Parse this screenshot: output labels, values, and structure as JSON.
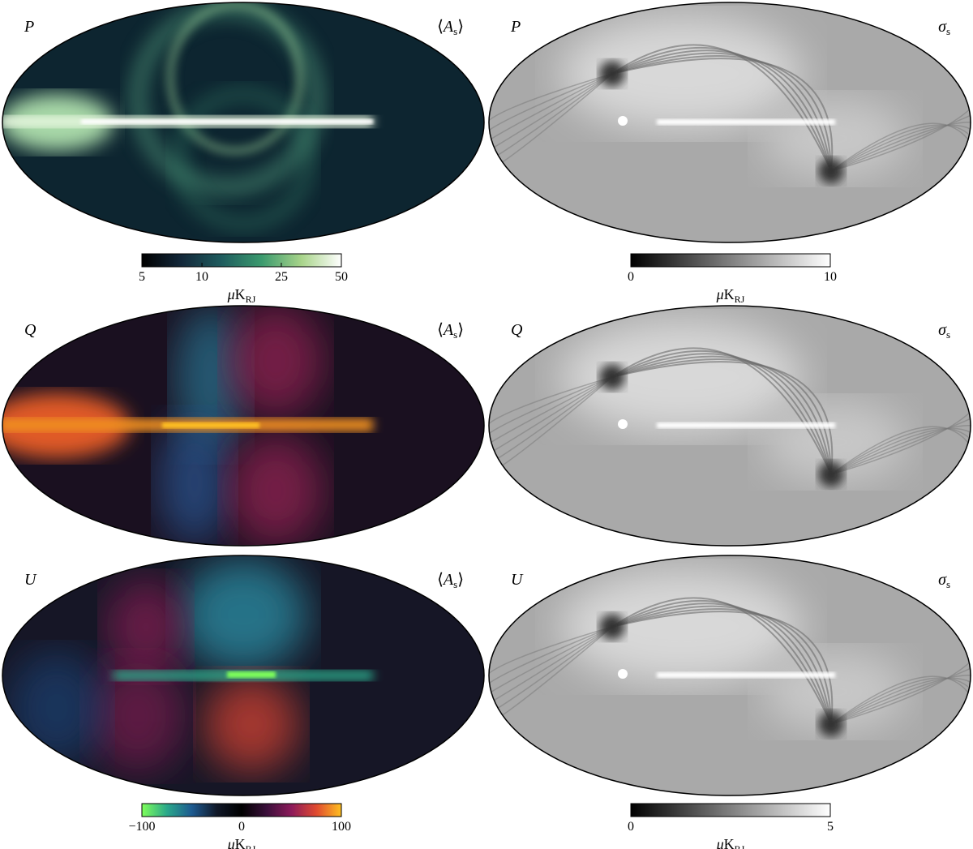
{
  "panels": [
    {
      "stokes": "P",
      "stat": {
        "open": "⟨",
        "symbol": "A",
        "sub": "s",
        "close": "⟩"
      }
    },
    {
      "stokes": "P",
      "stat": {
        "symbol": "σ",
        "sub": "s"
      }
    },
    {
      "stokes": "Q",
      "stat": {
        "open": "⟨",
        "symbol": "A",
        "sub": "s",
        "close": "⟩"
      }
    },
    {
      "stokes": "Q",
      "stat": {
        "symbol": "σ",
        "sub": "s"
      }
    },
    {
      "stokes": "U",
      "stat": {
        "open": "⟨",
        "symbol": "A",
        "sub": "s",
        "close": "⟩"
      }
    },
    {
      "stokes": "U",
      "stat": {
        "symbol": "σ",
        "sub": "s"
      }
    }
  ],
  "colorbars": [
    {
      "lim": [
        5,
        50
      ],
      "scale": "log",
      "ticks": [
        5,
        10,
        25,
        50
      ],
      "colors": [
        "#000000",
        "#13283a",
        "#1f5c5e",
        "#3b9a6e",
        "#a8d48a",
        "#ffffff"
      ],
      "unit": {
        "prefix": "μ",
        "main": "K",
        "sub": "RJ"
      }
    },
    {
      "lim": [
        0,
        10
      ],
      "scale": "linear",
      "ticks": [
        0,
        10
      ],
      "colors": [
        "#000000",
        "#ffffff"
      ],
      "unit": {
        "prefix": "μ",
        "main": "K",
        "sub": "RJ"
      }
    },
    {
      "lim": [
        -100,
        100
      ],
      "scale": "linear",
      "ticks": [
        {
          "value": -100,
          "label": "−100"
        },
        0,
        100
      ],
      "colors": [
        "#7fff5a",
        "#2aa88a",
        "#1d5a90",
        "#101828",
        "#000000",
        "#3a0f3a",
        "#8c1a5a",
        "#e04a30",
        "#ffc020"
      ],
      "unit": {
        "prefix": "μ",
        "main": "K",
        "sub": "RJ"
      }
    },
    {
      "lim": [
        0,
        5
      ],
      "scale": "linear",
      "ticks": [
        0,
        5
      ],
      "colors": [
        "#000000",
        "#ffffff"
      ],
      "unit": {
        "prefix": "μ",
        "main": "K",
        "sub": "RJ"
      }
    }
  ]
}
